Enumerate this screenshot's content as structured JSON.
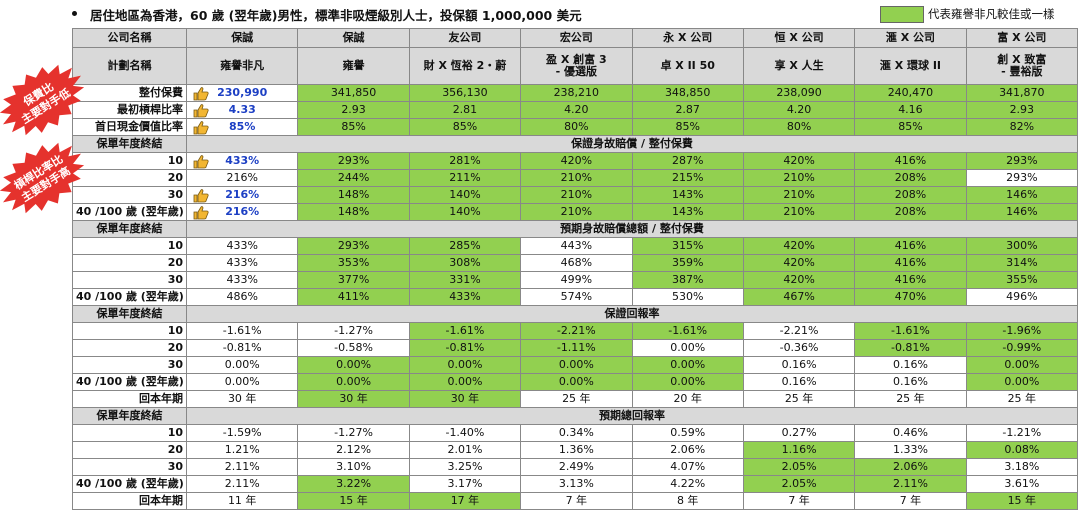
{
  "header": {
    "title": "居住地區為香港，60 歲 (翌年歲)男性，標準非吸煙級別人士，投保額 1,000,000 美元",
    "legend": "代表雍譽非凡較佳或一樣"
  },
  "badges": [
    [
      "保費比",
      "主要對手低"
    ],
    [
      "槓桿比率比",
      "主要對手高"
    ]
  ],
  "table": {
    "companies": {
      "label": "公司名稱",
      "values": [
        "保誠",
        "保誠",
        "友公司",
        "宏公司",
        "永 X 公司",
        "恒 X 公司",
        "滙 X 公司",
        "富 X 公司"
      ]
    },
    "plans": {
      "label": "計劃名稱",
      "values": [
        [
          "雍譽非凡"
        ],
        [
          "雍譽"
        ],
        [
          "財 X 恆裕 2・蔚"
        ],
        [
          "盈 X 創富 3",
          "- 優選版"
        ],
        [
          "卓 X II 50"
        ],
        [
          "享 X 人生"
        ],
        [
          "滙 X 環球 II"
        ],
        [
          "創 X 致富",
          "- 豐裕版"
        ]
      ]
    },
    "rows": [
      {
        "label": "整付保費",
        "thumb": true,
        "cells": [
          "230,990",
          "341,850",
          "356,130",
          "238,210",
          "348,850",
          "238,090",
          "240,470",
          "341,870"
        ],
        "highlight": [
          false,
          true,
          true,
          true,
          true,
          true,
          true,
          true
        ]
      },
      {
        "label": "最初槓桿比率",
        "thumb": true,
        "cells": [
          "4.33",
          "2.93",
          "2.81",
          "4.20",
          "2.87",
          "4.20",
          "4.16",
          "2.93"
        ],
        "highlight": [
          false,
          true,
          true,
          true,
          true,
          true,
          true,
          true
        ]
      },
      {
        "label": "首日現金價值比率",
        "thumb": true,
        "cells": [
          "85%",
          "85%",
          "85%",
          "80%",
          "85%",
          "80%",
          "85%",
          "82%"
        ],
        "highlight": [
          false,
          true,
          true,
          true,
          true,
          true,
          true,
          true
        ]
      },
      {
        "label": "保單年度終結",
        "section": "保證身故賠償 / 整付保費"
      },
      {
        "label": "10",
        "thumb": true,
        "cells": [
          "433%",
          "293%",
          "281%",
          "420%",
          "287%",
          "420%",
          "416%",
          "293%"
        ],
        "highlight": [
          false,
          true,
          true,
          true,
          true,
          true,
          true,
          true
        ]
      },
      {
        "label": "20",
        "cells": [
          "216%",
          "244%",
          "211%",
          "210%",
          "215%",
          "210%",
          "208%",
          "293%"
        ],
        "highlight": [
          false,
          true,
          true,
          true,
          true,
          true,
          true,
          false
        ]
      },
      {
        "label": "30",
        "thumb": true,
        "cells": [
          "216%",
          "148%",
          "140%",
          "210%",
          "143%",
          "210%",
          "208%",
          "146%"
        ],
        "highlight": [
          false,
          true,
          true,
          true,
          true,
          true,
          true,
          true
        ]
      },
      {
        "label": "40 /100 歲 (翌年歲)",
        "thumb": true,
        "cells": [
          "216%",
          "148%",
          "140%",
          "210%",
          "143%",
          "210%",
          "208%",
          "146%"
        ],
        "highlight": [
          false,
          true,
          true,
          true,
          true,
          true,
          true,
          true
        ]
      },
      {
        "label": "保單年度終結",
        "section": "預期身故賠償總額 / 整付保費"
      },
      {
        "label": "10",
        "cells": [
          "433%",
          "293%",
          "285%",
          "443%",
          "315%",
          "420%",
          "416%",
          "300%"
        ],
        "highlight": [
          false,
          true,
          true,
          false,
          true,
          true,
          true,
          true
        ]
      },
      {
        "label": "20",
        "cells": [
          "433%",
          "353%",
          "308%",
          "468%",
          "359%",
          "420%",
          "416%",
          "314%"
        ],
        "highlight": [
          false,
          true,
          true,
          false,
          true,
          true,
          true,
          true
        ]
      },
      {
        "label": "30",
        "cells": [
          "433%",
          "377%",
          "331%",
          "499%",
          "387%",
          "420%",
          "416%",
          "355%"
        ],
        "highlight": [
          false,
          true,
          true,
          false,
          true,
          true,
          true,
          true
        ]
      },
      {
        "label": "40 /100 歲 (翌年歲)",
        "cells": [
          "486%",
          "411%",
          "433%",
          "574%",
          "530%",
          "467%",
          "470%",
          "496%"
        ],
        "highlight": [
          false,
          true,
          true,
          false,
          false,
          true,
          true,
          false
        ]
      },
      {
        "label": "保單年度終結",
        "section": "保證回報率"
      },
      {
        "label": "10",
        "cells": [
          "-1.61%",
          "-1.27%",
          "-1.61%",
          "-2.21%",
          "-1.61%",
          "-2.21%",
          "-1.61%",
          "-1.96%"
        ],
        "highlight": [
          false,
          false,
          true,
          true,
          true,
          false,
          true,
          true
        ]
      },
      {
        "label": "20",
        "cells": [
          "-0.81%",
          "-0.58%",
          "-0.81%",
          "-1.11%",
          "0.00%",
          "-0.36%",
          "-0.81%",
          "-0.99%"
        ],
        "highlight": [
          false,
          false,
          true,
          true,
          false,
          false,
          true,
          true
        ]
      },
      {
        "label": "30",
        "cells": [
          "0.00%",
          "0.00%",
          "0.00%",
          "0.00%",
          "0.00%",
          "0.16%",
          "0.16%",
          "0.00%"
        ],
        "highlight": [
          false,
          true,
          true,
          true,
          true,
          false,
          false,
          true
        ]
      },
      {
        "label": "40 /100 歲 (翌年歲)",
        "cells": [
          "0.00%",
          "0.00%",
          "0.00%",
          "0.00%",
          "0.00%",
          "0.16%",
          "0.16%",
          "0.00%"
        ],
        "highlight": [
          false,
          true,
          true,
          true,
          true,
          false,
          false,
          true
        ]
      },
      {
        "label": "回本年期",
        "cells": [
          "30 年",
          "30 年",
          "30 年",
          "25 年",
          "20 年",
          "25 年",
          "25 年",
          "25 年"
        ],
        "highlight": [
          false,
          true,
          true,
          false,
          false,
          false,
          false,
          false
        ]
      },
      {
        "label": "保單年度終結",
        "section": "預期總回報率"
      },
      {
        "label": "10",
        "cells": [
          "-1.59%",
          "-1.27%",
          "-1.40%",
          "0.34%",
          "0.59%",
          "0.27%",
          "0.46%",
          "-1.21%"
        ],
        "highlight": [
          false,
          false,
          false,
          false,
          false,
          false,
          false,
          false
        ]
      },
      {
        "label": "20",
        "cells": [
          "1.21%",
          "2.12%",
          "2.01%",
          "1.36%",
          "2.06%",
          "1.16%",
          "1.33%",
          "0.08%"
        ],
        "highlight": [
          false,
          false,
          false,
          false,
          false,
          true,
          false,
          true
        ]
      },
      {
        "label": "30",
        "cells": [
          "2.11%",
          "3.10%",
          "3.25%",
          "2.49%",
          "4.07%",
          "2.05%",
          "2.06%",
          "3.18%"
        ],
        "highlight": [
          false,
          false,
          false,
          false,
          false,
          true,
          true,
          false
        ]
      },
      {
        "label": "40 /100 歲 (翌年歲)",
        "cells": [
          "2.11%",
          "3.22%",
          "3.17%",
          "3.13%",
          "4.22%",
          "2.05%",
          "2.11%",
          "3.61%"
        ],
        "highlight": [
          false,
          true,
          false,
          false,
          false,
          true,
          true,
          false
        ]
      },
      {
        "label": "回本年期",
        "cells": [
          "11 年",
          "15 年",
          "17 年",
          "7 年",
          "8 年",
          "7 年",
          "7 年",
          "15 年"
        ],
        "highlight": [
          false,
          true,
          true,
          false,
          false,
          false,
          false,
          true
        ]
      }
    ]
  }
}
